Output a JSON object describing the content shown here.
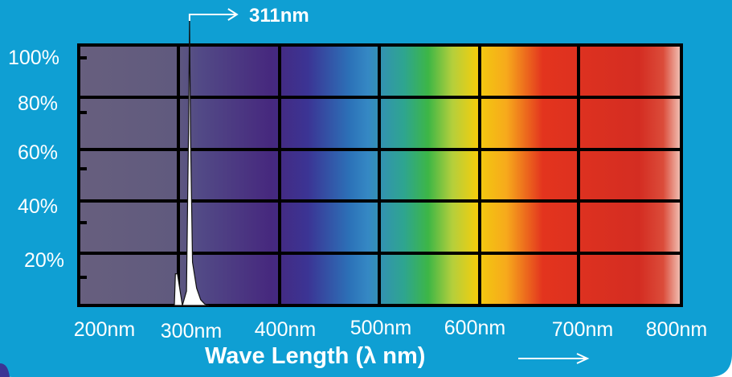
{
  "chart_data": {
    "type": "line",
    "title": "",
    "xlabel": "Wave Length (λ nm)",
    "ylabel": "",
    "x_tick_labels": [
      "200nm",
      "300nm",
      "400nm",
      "500nm",
      "600nm",
      "700nm",
      "800nm"
    ],
    "y_tick_labels": [
      "100%",
      "80%",
      "60%",
      "40%",
      "20%"
    ],
    "xlim": [
      200,
      800
    ],
    "ylim": [
      0,
      100
    ],
    "grid": true,
    "background": "visible light spectrum gradient",
    "series": [
      {
        "x": [
          296,
          297,
          299,
          304,
          308,
          310,
          311,
          312,
          314,
          318,
          322,
          326,
          330
        ],
        "y": [
          0,
          11,
          11,
          0,
          5,
          60,
          100,
          60,
          15,
          6,
          2,
          0.5,
          0
        ]
      }
    ],
    "annotation": {
      "label": "311nm",
      "x": 311
    },
    "colors": {
      "panel": "#0f9fd3",
      "grid": "#000000",
      "peak_fill": "#ffffff"
    }
  }
}
